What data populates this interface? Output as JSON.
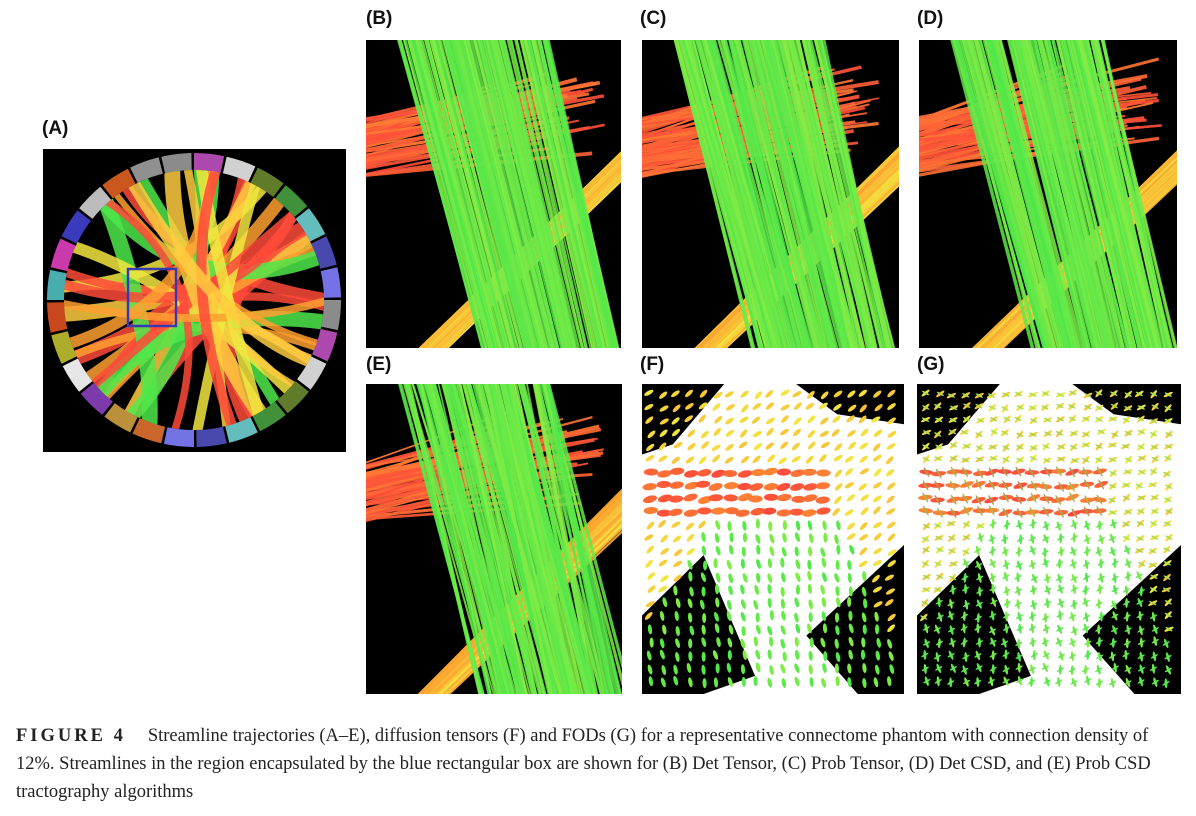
{
  "panels": [
    {
      "id": "A",
      "label": "(A)",
      "kind": "phantom"
    },
    {
      "id": "B",
      "label": "(B)",
      "kind": "streamlines"
    },
    {
      "id": "C",
      "label": "(C)",
      "kind": "streamlines"
    },
    {
      "id": "D",
      "label": "(D)",
      "kind": "streamlines"
    },
    {
      "id": "E",
      "label": "(E)",
      "kind": "streamlines"
    },
    {
      "id": "F",
      "label": "(F)",
      "kind": "tensors"
    },
    {
      "id": "G",
      "label": "(G)",
      "kind": "fods"
    }
  ],
  "caption": {
    "figure_label": "FIGURE 4",
    "text": "Streamline trajectories (A–E), diffusion tensors (F) and FODs (G) for a representative connectome phantom with connection density of 12%. Streamlines in the region encapsulated by the blue rectangular box are shown for (B) Det Tensor, (C) Prob Tensor, (D) Det CSD, and (E) Prob CSD tractography algorithms"
  },
  "colors": {
    "background": "#000000",
    "red_fibers": "#ff4a3a",
    "orange_fibers": "#ffa030",
    "yellow_fibers": "#f2e640",
    "green_fibers": "#4ee84a",
    "roi_box": "#3a3ab0"
  }
}
